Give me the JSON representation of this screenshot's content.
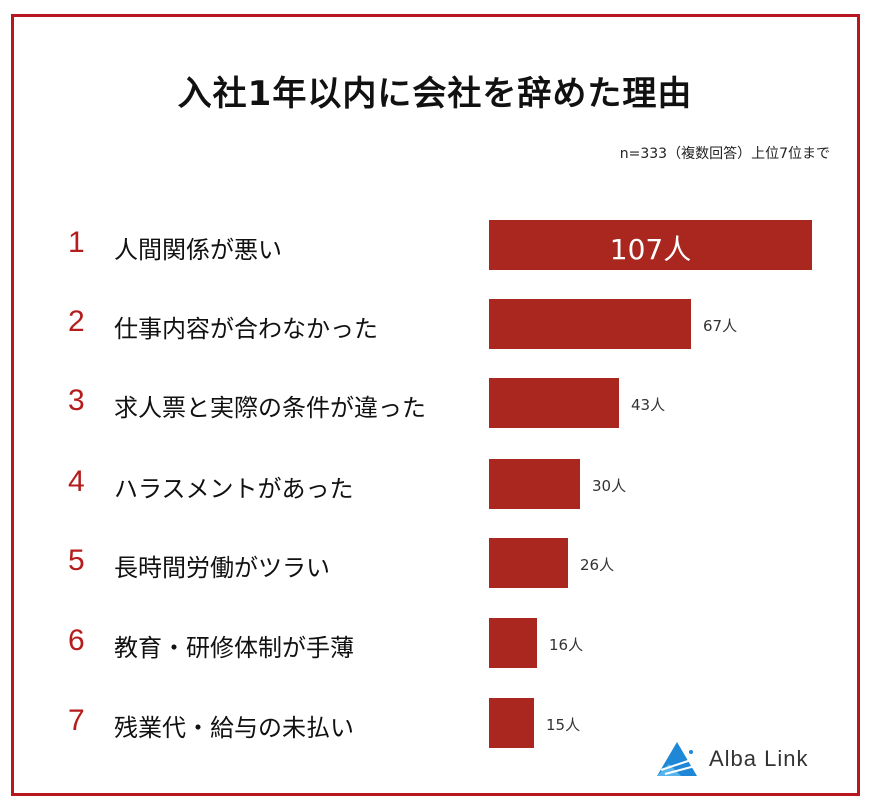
{
  "header": {
    "title": "入社1年以内に会社を辞めた理由",
    "note": "n=333（複数回答）上位7位まで"
  },
  "rows": [
    {
      "rank": "1",
      "label": "人間関係が悪い",
      "value_label": "107人"
    },
    {
      "rank": "2",
      "label": "仕事内容が合わなかった",
      "value_label": "67人"
    },
    {
      "rank": "3",
      "label": "求人票と実際の条件が違った",
      "value_label": "43人"
    },
    {
      "rank": "4",
      "label": "ハラスメントがあった",
      "value_label": "30人"
    },
    {
      "rank": "5",
      "label": "長時間労働がツラい",
      "value_label": "26人"
    },
    {
      "rank": "6",
      "label": "教育・研修体制が手薄",
      "value_label": "16人"
    },
    {
      "rank": "7",
      "label": "残業代・給与の未払い",
      "value_label": "15人"
    }
  ],
  "logo": {
    "text": "Alba Link",
    "icon": "triangle-logo-icon"
  },
  "colors": {
    "bar": "#a9271e",
    "rank": "#b51c1c",
    "frame": "#b8171f",
    "logo_blue": "#1e88d6"
  },
  "chart_data": {
    "type": "bar",
    "orientation": "horizontal",
    "title": "入社1年以内に会社を辞めた理由",
    "subtitle": "n=333（複数回答）上位7位まで",
    "categories": [
      "人間関係が悪い",
      "仕事内容が合わなかった",
      "求人票と実際の条件が違った",
      "ハラスメントがあった",
      "長時間労働がツラい",
      "教育・研修体制が手薄",
      "残業代・給与の未払い"
    ],
    "values": [
      107,
      67,
      43,
      30,
      26,
      16,
      15
    ],
    "unit": "人",
    "xlabel": "",
    "ylabel": "",
    "grid": false,
    "legend": "none"
  }
}
